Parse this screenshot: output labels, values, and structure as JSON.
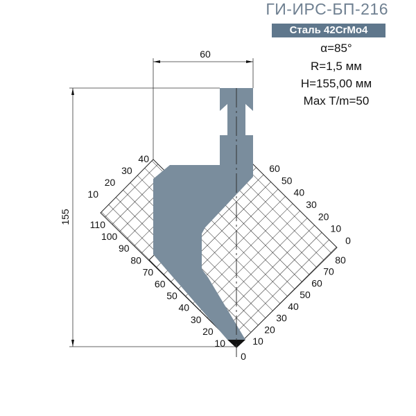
{
  "header": {
    "code": "ГИ-ИРС-БП-216",
    "material": "Сталь 42CrMo4"
  },
  "specs": {
    "angle": "α=85°",
    "radius": "R=1,5 мм",
    "height": "H=155,00 мм",
    "max_load": "Max T/m=50"
  },
  "dimensions": {
    "width": "60",
    "height": "155"
  },
  "scales": {
    "left_upper": [
      "40",
      "30",
      "20",
      "10"
    ],
    "left_lower": [
      "110",
      "100",
      "90",
      "80",
      "70",
      "60",
      "50",
      "40",
      "30",
      "20",
      "10"
    ],
    "right_upper": [
      "60",
      "50",
      "40",
      "30",
      "20",
      "10",
      "0"
    ],
    "right_lower": [
      "80",
      "70",
      "60",
      "50",
      "40",
      "30",
      "20",
      "10"
    ],
    "origin": "0"
  },
  "colors": {
    "profile": "#7a8d9d",
    "badge": "#5f778c",
    "title": "#6f8091"
  }
}
